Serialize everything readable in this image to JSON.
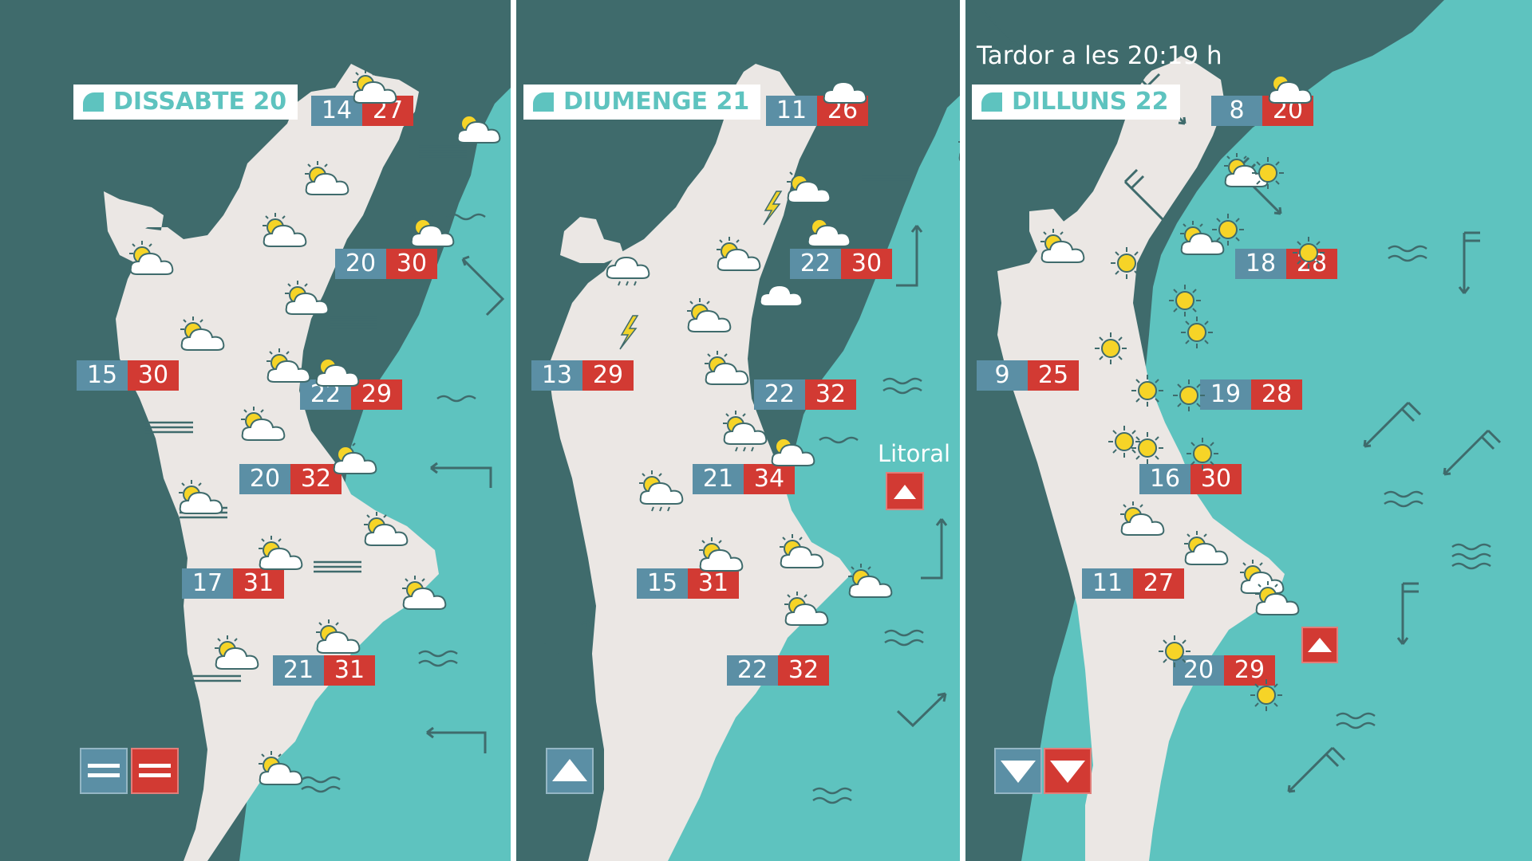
{
  "colors": {
    "land": "#ebe7e4",
    "sea": "#5ec3bf",
    "background": "#3f6b6c",
    "min_box": "#5b8fa5",
    "max_box": "#d23a33",
    "label_text": "#5ec3bf"
  },
  "header": {
    "title": "Tardor a les 20:19 h"
  },
  "panels": [
    {
      "day": "DISSABTE 20",
      "temperatures": [
        {
          "min": "14",
          "max": "27"
        },
        {
          "min": "20",
          "max": "30"
        },
        {
          "min": "15",
          "max": "30"
        },
        {
          "min": "22",
          "max": "29"
        },
        {
          "min": "20",
          "max": "32"
        },
        {
          "min": "17",
          "max": "31"
        },
        {
          "min": "21",
          "max": "31"
        }
      ],
      "weather_icons": [
        "sun-cloud-icon",
        "sun-cloud-icon",
        "sun-cloud-icon",
        "sun-cloud-icon",
        "sun-cloud-icon",
        "sun-cloud-icon",
        "sun-cloud-icon",
        "sun-cloud-icon",
        "sun-cloud-icon",
        "sun-cloud-icon",
        "sun-cloud-icon",
        "sun-cloud-icon",
        "sun-cloud-icon",
        "sun-cloud-icon",
        "sun-cloud-icon",
        "sun-cloud-icon",
        "sun-cloud-icon",
        "sun-cloud-icon",
        "sun-cloud-icon"
      ],
      "tendency": {
        "min": "stable",
        "max": "stable"
      }
    },
    {
      "day": "DIUMENGE 21",
      "temperatures": [
        {
          "min": "11",
          "max": "26"
        },
        {
          "min": "22",
          "max": "30"
        },
        {
          "min": "13",
          "max": "29"
        },
        {
          "min": "22",
          "max": "32"
        },
        {
          "min": "21",
          "max": "34"
        },
        {
          "min": "15",
          "max": "31"
        },
        {
          "min": "22",
          "max": "32"
        }
      ],
      "weather_icons": [
        "cloud-icon",
        "sun-cloud-icon",
        "sun-rain-storm-icon",
        "rain-cloud-icon",
        "sun-cloud-icon",
        "sun-cloud-icon",
        "storm-icon",
        "sun-cloud-icon",
        "sun-cloud-icon",
        "sun-rain-icon",
        "sun-cloud-icon",
        "sun-rain-icon",
        "sun-cloud-icon",
        "sun-cloud-icon",
        "sun-cloud-icon",
        "sun-cloud-icon"
      ],
      "litoral_label": "Litoral",
      "tendency": {
        "max": "up",
        "litoral": "up"
      }
    },
    {
      "day": "DILLUNS 22",
      "temperatures": [
        {
          "min": "8",
          "max": "20"
        },
        {
          "min": "18",
          "max": "28"
        },
        {
          "min": "9",
          "max": "25"
        },
        {
          "min": "19",
          "max": "28"
        },
        {
          "min": "16",
          "max": "30"
        },
        {
          "min": "11",
          "max": "27"
        },
        {
          "min": "20",
          "max": "29"
        }
      ],
      "weather_icons": [
        "sun-cloud-icon",
        "sun-cloud-icon",
        "sun-icon",
        "sun-cloud-icon",
        "sun-cloud-icon",
        "sun-icon",
        "sun-icon",
        "sun-icon",
        "sun-icon",
        "sun-icon",
        "sun-icon",
        "sun-icon",
        "sun-icon",
        "sun-icon",
        "sun-icon",
        "sun-icon",
        "sun-cloud-icon",
        "sun-cloud-icon",
        "sun-cloud-icon",
        "sun-cloud-icon",
        "sun-icon",
        "sun-icon"
      ],
      "tendency": {
        "min": "down",
        "max": "down",
        "coast": "up"
      }
    }
  ]
}
